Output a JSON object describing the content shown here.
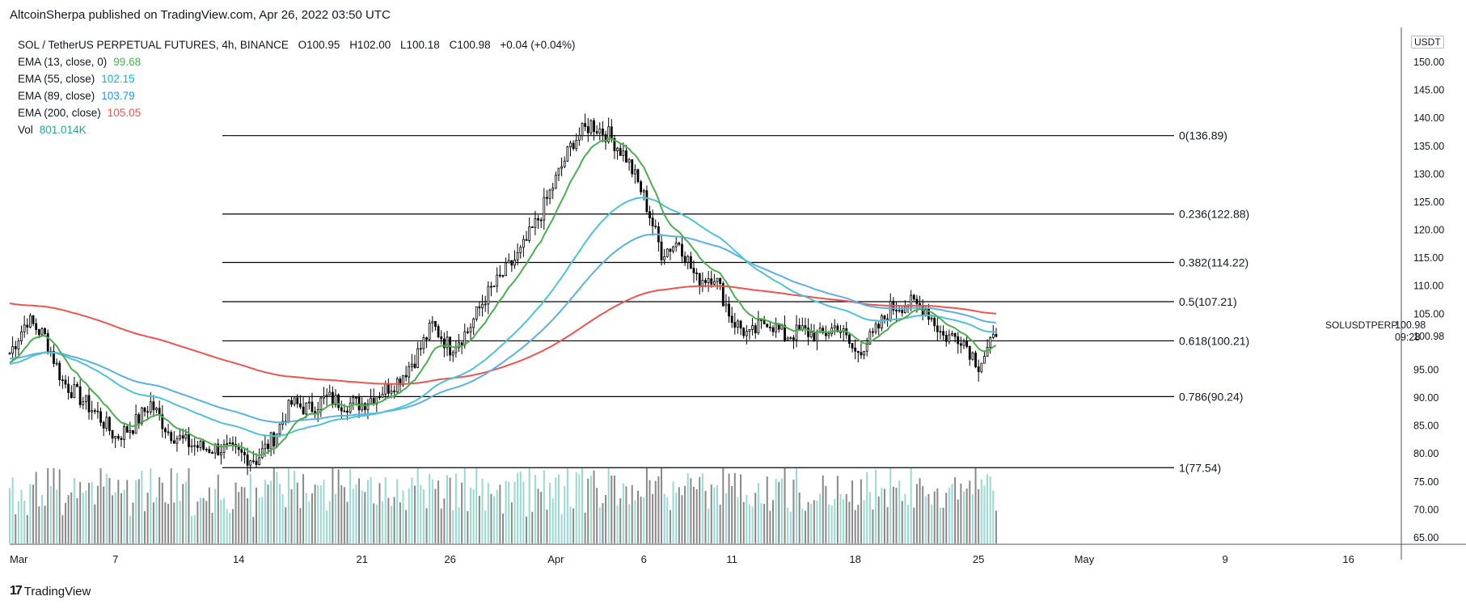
{
  "header": {
    "published": "AltcoinSherpa published on TradingView.com, Apr 26, 2022 03:50 UTC"
  },
  "symbol": {
    "name": "SOL / TetherUS PERPETUAL FUTURES, 4h, BINANCE",
    "open": "O100.95",
    "high": "H102.00",
    "low": "L100.18",
    "close": "C100.98",
    "change": "+0.04 (+0.04%)"
  },
  "indicators": [
    {
      "label": "EMA (13, close, 0)",
      "value": "99.68",
      "color": "#4caf50"
    },
    {
      "label": "EMA (55, close)",
      "value": "102.15",
      "color": "#00bcd4"
    },
    {
      "label": "EMA (89, close)",
      "value": "103.79",
      "color": "#2196f3"
    },
    {
      "label": "EMA (200, close)",
      "value": "105.05",
      "color": "#ef5350"
    },
    {
      "label": "Vol",
      "value": "801.014K",
      "color": "#26a69a"
    }
  ],
  "price_axis": {
    "unit": "USDT",
    "ticks": [
      "150.00",
      "145.00",
      "140.00",
      "135.00",
      "130.00",
      "125.00",
      "120.00",
      "115.00",
      "110.00",
      "105.00",
      "100.98",
      "95.00",
      "90.00",
      "85.00",
      "80.00",
      "75.00",
      "70.00",
      "65.00"
    ],
    "last_price": "100.98",
    "countdown": "09:28",
    "symbol_tag": "SOLUSDTPERP"
  },
  "time_axis": {
    "ticks": [
      "Mar",
      "7",
      "14",
      "21",
      "26",
      "Apr",
      "6",
      "11",
      "18",
      "25",
      "May",
      "9",
      "16"
    ]
  },
  "brand": {
    "name": "TradingView"
  },
  "chart_data": {
    "type": "line",
    "title": "SOL / TetherUS PERPETUAL FUTURES, 4h, BINANCE",
    "xlabel": "",
    "ylabel": "",
    "ylim": [
      65,
      150
    ],
    "grid": false,
    "x_range": [
      "2022-03-01",
      "2022-05-19"
    ],
    "last_candle": "2022-04-26",
    "fibonacci": [
      {
        "label": "0(136.89)",
        "value": 136.89
      },
      {
        "label": "0.236(122.88)",
        "value": 122.88
      },
      {
        "label": "0.382(114.22)",
        "value": 114.22
      },
      {
        "label": "0.5(107.21)",
        "value": 107.21
      },
      {
        "label": "0.618(100.21)",
        "value": 100.21
      },
      {
        "label": "0.786(90.24)",
        "value": 90.24
      },
      {
        "label": "1(77.54)",
        "value": 77.54
      }
    ],
    "fib_start": "2022-03-12",
    "fib_end": "2022-05-05",
    "price_anchors": [
      [
        "2022-03-01",
        98
      ],
      [
        "2022-03-02",
        104
      ],
      [
        "2022-03-03",
        101
      ],
      [
        "2022-03-04",
        93
      ],
      [
        "2022-03-05",
        90
      ],
      [
        "2022-03-06",
        87
      ],
      [
        "2022-03-07",
        83
      ],
      [
        "2022-03-08",
        85
      ],
      [
        "2022-03-09",
        89
      ],
      [
        "2022-03-10",
        84
      ],
      [
        "2022-03-11",
        82
      ],
      [
        "2022-03-12",
        81
      ],
      [
        "2022-03-13",
        81
      ],
      [
        "2022-03-14",
        80
      ],
      [
        "2022-03-15",
        79
      ],
      [
        "2022-03-16",
        83
      ],
      [
        "2022-03-17",
        89
      ],
      [
        "2022-03-18",
        88
      ],
      [
        "2022-03-19",
        90
      ],
      [
        "2022-03-20",
        89
      ],
      [
        "2022-03-21",
        89
      ],
      [
        "2022-03-22",
        91
      ],
      [
        "2022-03-23",
        93
      ],
      [
        "2022-03-24",
        97
      ],
      [
        "2022-03-25",
        103
      ],
      [
        "2022-03-26",
        99
      ],
      [
        "2022-03-27",
        102
      ],
      [
        "2022-03-28",
        108
      ],
      [
        "2022-03-29",
        112
      ],
      [
        "2022-03-30",
        116
      ],
      [
        "2022-03-31",
        122
      ],
      [
        "2022-04-01",
        129
      ],
      [
        "2022-04-02",
        136
      ],
      [
        "2022-04-03",
        139
      ],
      [
        "2022-04-04",
        137
      ],
      [
        "2022-04-05",
        133
      ],
      [
        "2022-04-06",
        126
      ],
      [
        "2022-04-07",
        116
      ],
      [
        "2022-04-08",
        118
      ],
      [
        "2022-04-09",
        111
      ],
      [
        "2022-04-10",
        112
      ],
      [
        "2022-04-11",
        104
      ],
      [
        "2022-04-12",
        101
      ],
      [
        "2022-04-13",
        104
      ],
      [
        "2022-04-14",
        101
      ],
      [
        "2022-04-15",
        102
      ],
      [
        "2022-04-16",
        101
      ],
      [
        "2022-04-17",
        103
      ],
      [
        "2022-04-18",
        98
      ],
      [
        "2022-04-19",
        101
      ],
      [
        "2022-04-20",
        106
      ],
      [
        "2022-04-21",
        107
      ],
      [
        "2022-04-22",
        106
      ],
      [
        "2022-04-23",
        101
      ],
      [
        "2022-04-24",
        101
      ],
      [
        "2022-04-25",
        96
      ],
      [
        "2022-04-26",
        101
      ]
    ],
    "series": [
      {
        "name": "EMA (13, close, 0)",
        "color": "#4caf50",
        "last": 99.68
      },
      {
        "name": "EMA (55, close)",
        "color": "#00bcd4",
        "last": 102.15
      },
      {
        "name": "EMA (89, close)",
        "color": "#2196f3",
        "last": 103.79
      },
      {
        "name": "EMA (200, close)",
        "color": "#ef5350",
        "last": 105.05
      },
      {
        "name": "Vol",
        "color": "#26a69a",
        "last": "801.014K"
      }
    ],
    "annotations": [
      "SOLUSDTPERP"
    ]
  }
}
